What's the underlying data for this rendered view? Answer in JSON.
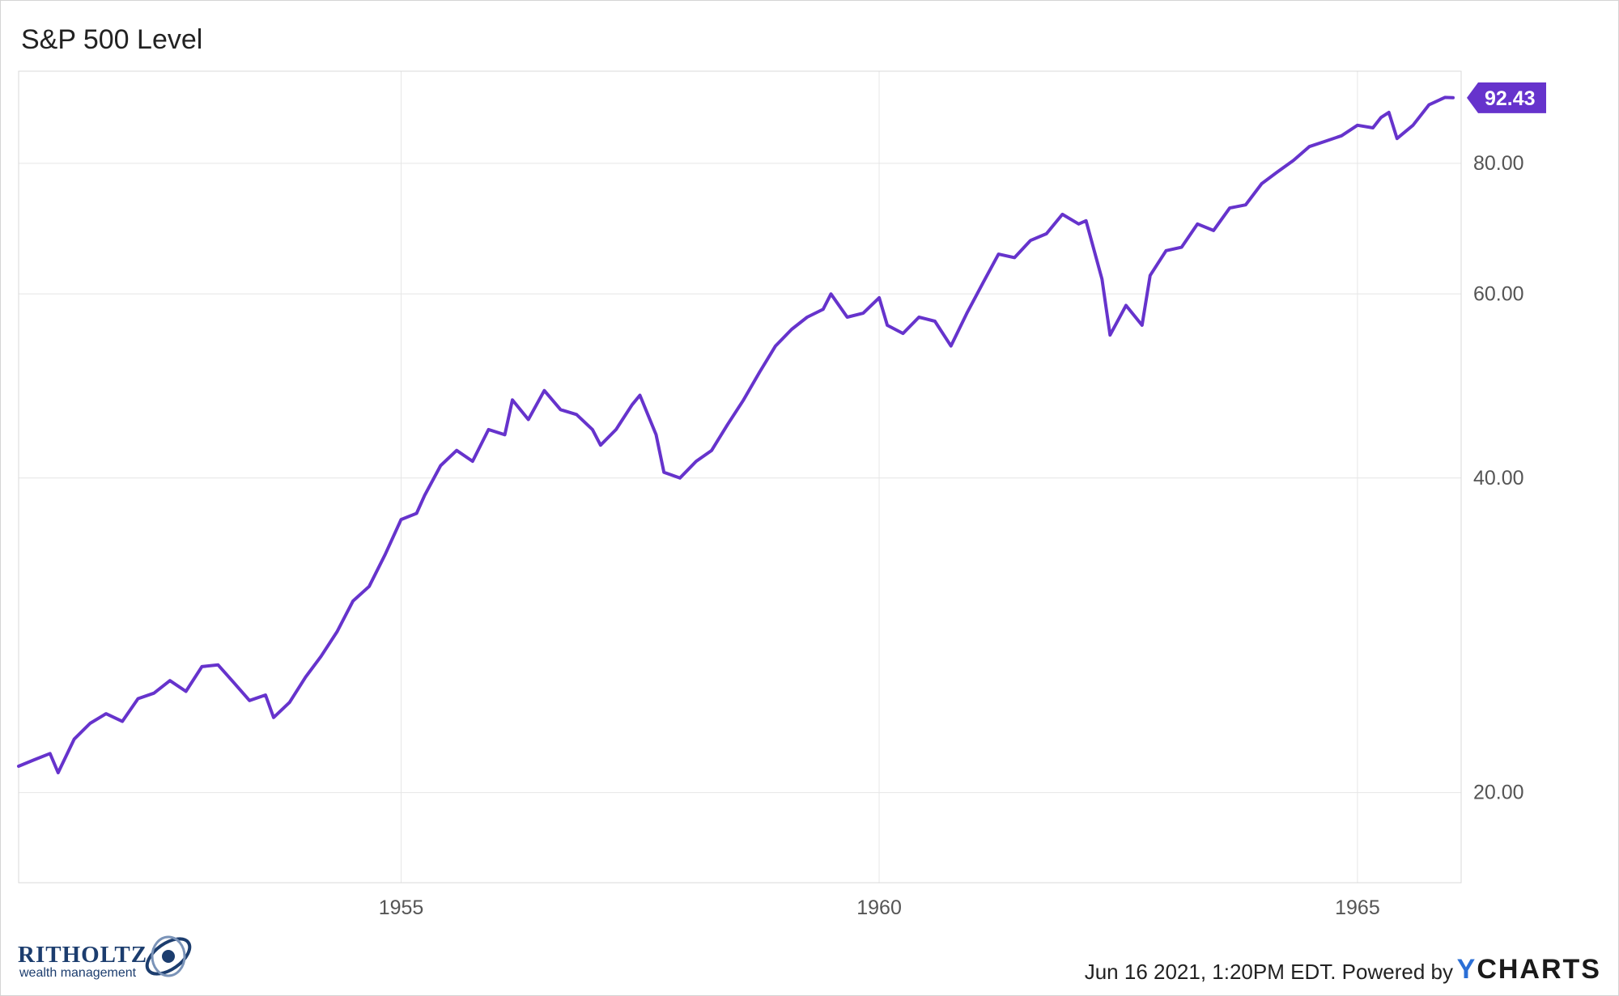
{
  "header": {
    "title": "S&P 500 Level"
  },
  "footer": {
    "timestamp_text": "Jun 16 2021, 1:20PM EDT. Powered by",
    "brand_y": "Y",
    "brand_rest": "CHARTS",
    "logo_word": "RITHOLTZ",
    "logo_sub": "wealth management"
  },
  "colors": {
    "line": "#6633cc",
    "grid": "#e6e6e6",
    "axis_text": "#555555"
  },
  "chart_data": {
    "type": "line",
    "title": "S&P 500 Level",
    "xlabel": "",
    "ylabel": "",
    "y_scale": "log",
    "ylim": [
      16.4,
      98
    ],
    "xlim": [
      "1951-01-01",
      "1966-02-01"
    ],
    "y_ticks": [
      20,
      40,
      60,
      80
    ],
    "y_tick_labels": [
      "20.00",
      "40.00",
      "60.00",
      "80.00"
    ],
    "x_ticks": [
      "1955-01-01",
      "1960-01-01",
      "1965-01-01"
    ],
    "x_tick_labels": [
      "1955",
      "1960",
      "1965"
    ],
    "grid": true,
    "last_value_label": "92.43",
    "series": [
      {
        "values": [
          [
            "1951-01-01",
            21.2
          ],
          [
            "1951-03-01",
            21.5
          ],
          [
            "1951-05-01",
            21.8
          ],
          [
            "1951-06-01",
            20.9
          ],
          [
            "1951-08-01",
            22.5
          ],
          [
            "1951-10-01",
            23.3
          ],
          [
            "1951-12-01",
            23.8
          ],
          [
            "1952-02-01",
            23.4
          ],
          [
            "1952-04-01",
            24.6
          ],
          [
            "1952-06-01",
            24.9
          ],
          [
            "1952-08-01",
            25.6
          ],
          [
            "1952-10-01",
            25.0
          ],
          [
            "1952-12-01",
            26.4
          ],
          [
            "1953-02-01",
            26.5
          ],
          [
            "1953-04-01",
            25.5
          ],
          [
            "1953-06-01",
            24.5
          ],
          [
            "1953-08-01",
            24.8
          ],
          [
            "1953-09-01",
            23.6
          ],
          [
            "1953-11-01",
            24.4
          ],
          [
            "1954-01-01",
            25.8
          ],
          [
            "1954-03-01",
            27.0
          ],
          [
            "1954-05-01",
            28.5
          ],
          [
            "1954-07-01",
            30.5
          ],
          [
            "1954-09-01",
            31.5
          ],
          [
            "1954-11-01",
            33.8
          ],
          [
            "1955-01-01",
            36.5
          ],
          [
            "1955-03-01",
            37.0
          ],
          [
            "1955-04-01",
            38.5
          ],
          [
            "1955-06-01",
            41.1
          ],
          [
            "1955-08-01",
            42.5
          ],
          [
            "1955-10-01",
            41.5
          ],
          [
            "1955-12-01",
            44.5
          ],
          [
            "1956-02-01",
            44.0
          ],
          [
            "1956-03-01",
            47.5
          ],
          [
            "1956-05-01",
            45.5
          ],
          [
            "1956-07-01",
            48.5
          ],
          [
            "1956-09-01",
            46.5
          ],
          [
            "1956-11-01",
            46.0
          ],
          [
            "1957-01-01",
            44.5
          ],
          [
            "1957-02-01",
            43.0
          ],
          [
            "1957-04-01",
            44.5
          ],
          [
            "1957-06-01",
            47.0
          ],
          [
            "1957-07-01",
            48.0
          ],
          [
            "1957-09-01",
            44.0
          ],
          [
            "1957-10-01",
            40.5
          ],
          [
            "1957-12-01",
            40.0
          ],
          [
            "1958-02-01",
            41.5
          ],
          [
            "1958-04-01",
            42.5
          ],
          [
            "1958-06-01",
            45.0
          ],
          [
            "1958-08-01",
            47.5
          ],
          [
            "1958-10-01",
            50.5
          ],
          [
            "1958-12-01",
            53.5
          ],
          [
            "1959-02-01",
            55.5
          ],
          [
            "1959-04-01",
            57.0
          ],
          [
            "1959-06-01",
            58.0
          ],
          [
            "1959-07-01",
            60.0
          ],
          [
            "1959-09-01",
            57.0
          ],
          [
            "1959-11-01",
            57.5
          ],
          [
            "1960-01-01",
            59.5
          ],
          [
            "1960-02-01",
            56.0
          ],
          [
            "1960-04-01",
            55.0
          ],
          [
            "1960-06-01",
            57.0
          ],
          [
            "1960-08-01",
            56.5
          ],
          [
            "1960-10-01",
            53.5
          ],
          [
            "1960-12-01",
            57.5
          ],
          [
            "1961-02-01",
            61.5
          ],
          [
            "1961-04-01",
            65.5
          ],
          [
            "1961-06-01",
            65.0
          ],
          [
            "1961-08-01",
            67.5
          ],
          [
            "1961-10-01",
            68.5
          ],
          [
            "1961-12-01",
            71.5
          ],
          [
            "1962-02-01",
            70.0
          ],
          [
            "1962-03-01",
            70.5
          ],
          [
            "1962-05-01",
            62.0
          ],
          [
            "1962-06-01",
            54.8
          ],
          [
            "1962-08-01",
            58.5
          ],
          [
            "1962-10-01",
            56.0
          ],
          [
            "1962-11-01",
            62.5
          ],
          [
            "1963-01-01",
            66.0
          ],
          [
            "1963-03-01",
            66.5
          ],
          [
            "1963-05-01",
            70.0
          ],
          [
            "1963-07-01",
            69.0
          ],
          [
            "1963-09-01",
            72.5
          ],
          [
            "1963-11-01",
            73.0
          ],
          [
            "1964-01-01",
            76.5
          ],
          [
            "1964-03-01",
            78.5
          ],
          [
            "1964-05-01",
            80.5
          ],
          [
            "1964-07-01",
            83.0
          ],
          [
            "1964-09-01",
            84.0
          ],
          [
            "1964-11-01",
            85.0
          ],
          [
            "1965-01-01",
            87.0
          ],
          [
            "1965-03-01",
            86.5
          ],
          [
            "1965-04-01",
            88.5
          ],
          [
            "1965-05-01",
            89.5
          ],
          [
            "1965-06-01",
            84.5
          ],
          [
            "1965-08-01",
            87.0
          ],
          [
            "1965-10-01",
            91.0
          ],
          [
            "1965-12-01",
            92.5
          ],
          [
            "1966-01-01",
            92.43
          ]
        ]
      }
    ]
  }
}
